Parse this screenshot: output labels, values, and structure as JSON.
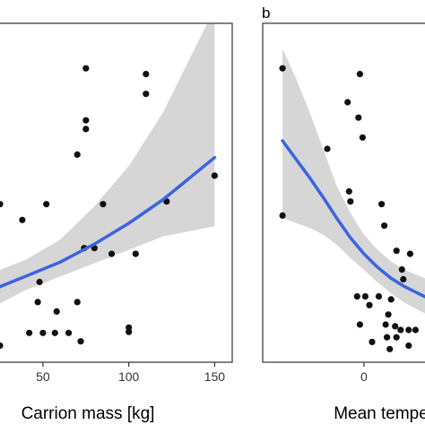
{
  "chart_data": [
    {
      "type": "scatter",
      "panel_label": "",
      "xlabel": "Carrion mass [kg]",
      "ylabel": "",
      "x_ticks": [
        50,
        100,
        150
      ],
      "x_tick_labels": [
        "50",
        "100",
        "150"
      ],
      "xlim": [
        25,
        155
      ],
      "ylim": [
        0,
        1
      ],
      "grid": false,
      "point_color": "#111111",
      "fit_color": "#3a64e0",
      "band_color": "#d6d6d6",
      "points": [
        {
          "x": 75,
          "y": 0.871
        },
        {
          "x": 110,
          "y": 0.854
        },
        {
          "x": 110,
          "y": 0.795
        },
        {
          "x": 75,
          "y": 0.716
        },
        {
          "x": 75,
          "y": 0.69
        },
        {
          "x": 70,
          "y": 0.614
        },
        {
          "x": 25,
          "y": 0.466
        },
        {
          "x": 52,
          "y": 0.466
        },
        {
          "x": 85,
          "y": 0.466
        },
        {
          "x": 150,
          "y": 0.551
        },
        {
          "x": 122,
          "y": 0.474
        },
        {
          "x": 38,
          "y": 0.419
        },
        {
          "x": 74,
          "y": 0.335
        },
        {
          "x": 80,
          "y": 0.335
        },
        {
          "x": 90,
          "y": 0.318
        },
        {
          "x": 104,
          "y": 0.318
        },
        {
          "x": 48,
          "y": 0.234
        },
        {
          "x": 47,
          "y": 0.174
        },
        {
          "x": 70,
          "y": 0.174
        },
        {
          "x": 58,
          "y": 0.146
        },
        {
          "x": 42,
          "y": 0.082
        },
        {
          "x": 50,
          "y": 0.082
        },
        {
          "x": 57,
          "y": 0.082
        },
        {
          "x": 65,
          "y": 0.082
        },
        {
          "x": 100,
          "y": 0.098
        },
        {
          "x": 100,
          "y": 0.085
        },
        {
          "x": 25,
          "y": 0.044
        },
        {
          "x": 72,
          "y": 0.057
        }
      ],
      "fit": {
        "x": [
          25,
          40,
          60,
          80,
          100,
          120,
          150
        ],
        "y": [
          0.22,
          0.251,
          0.293,
          0.347,
          0.409,
          0.48,
          0.605
        ]
      },
      "ci_lower": [
        0.17,
        0.21,
        0.25,
        0.29,
        0.33,
        0.37,
        0.4
      ],
      "ci_upper": [
        0.27,
        0.3,
        0.36,
        0.46,
        0.58,
        0.74,
        1.05
      ]
    },
    {
      "type": "scatter",
      "panel_label": "b",
      "xlabel": "Mean tempe",
      "ylabel": "",
      "x_ticks": [
        0
      ],
      "x_tick_labels": [
        "0"
      ],
      "xlim": [
        -6.8,
        4.5
      ],
      "ylim": [
        0,
        1
      ],
      "grid": false,
      "point_color": "#111111",
      "fit_color": "#3a64e0",
      "band_color": "#d6d6d6",
      "points": [
        {
          "x": -6,
          "y": 0.871
        },
        {
          "x": -0.3,
          "y": 0.854
        },
        {
          "x": -1.2,
          "y": 0.77
        },
        {
          "x": -0.4,
          "y": 0.724
        },
        {
          "x": -0.1,
          "y": 0.665
        },
        {
          "x": -2.7,
          "y": 0.631
        },
        {
          "x": -1.1,
          "y": 0.504
        },
        {
          "x": -1.0,
          "y": 0.474
        },
        {
          "x": 1.3,
          "y": 0.466
        },
        {
          "x": -6,
          "y": 0.432
        },
        {
          "x": 1.5,
          "y": 0.402
        },
        {
          "x": 2.4,
          "y": 0.327
        },
        {
          "x": 3.4,
          "y": 0.318
        },
        {
          "x": 2.8,
          "y": 0.271
        },
        {
          "x": 2.9,
          "y": 0.242
        },
        {
          "x": -0.5,
          "y": 0.191
        },
        {
          "x": 0.1,
          "y": 0.191
        },
        {
          "x": 1.1,
          "y": 0.191
        },
        {
          "x": 2.0,
          "y": 0.182
        },
        {
          "x": 0.4,
          "y": 0.165
        },
        {
          "x": 1.8,
          "y": 0.137
        },
        {
          "x": -0.3,
          "y": 0.107
        },
        {
          "x": 1.6,
          "y": 0.107
        },
        {
          "x": 2.3,
          "y": 0.102
        },
        {
          "x": 2.7,
          "y": 0.091
        },
        {
          "x": 3.3,
          "y": 0.091
        },
        {
          "x": 3.8,
          "y": 0.091
        },
        {
          "x": 1.7,
          "y": 0.069
        },
        {
          "x": 2.4,
          "y": 0.069
        },
        {
          "x": 0.6,
          "y": 0.055
        },
        {
          "x": 3.3,
          "y": 0.044
        },
        {
          "x": 1.9,
          "y": 0.034
        }
      ],
      "fit": {
        "x": [
          -6,
          -5,
          -4,
          -3,
          -2,
          -1,
          0,
          1,
          2,
          3,
          4.5
        ],
        "y": [
          0.655,
          0.6,
          0.545,
          0.486,
          0.424,
          0.366,
          0.318,
          0.278,
          0.245,
          0.22,
          0.19
        ]
      },
      "ci_lower": [
        0.425,
        0.41,
        0.395,
        0.375,
        0.345,
        0.305,
        0.27,
        0.233,
        0.2,
        0.172,
        0.14
      ],
      "ci_upper": [
        0.93,
        0.84,
        0.74,
        0.63,
        0.52,
        0.44,
        0.375,
        0.33,
        0.295,
        0.27,
        0.245
      ]
    }
  ]
}
